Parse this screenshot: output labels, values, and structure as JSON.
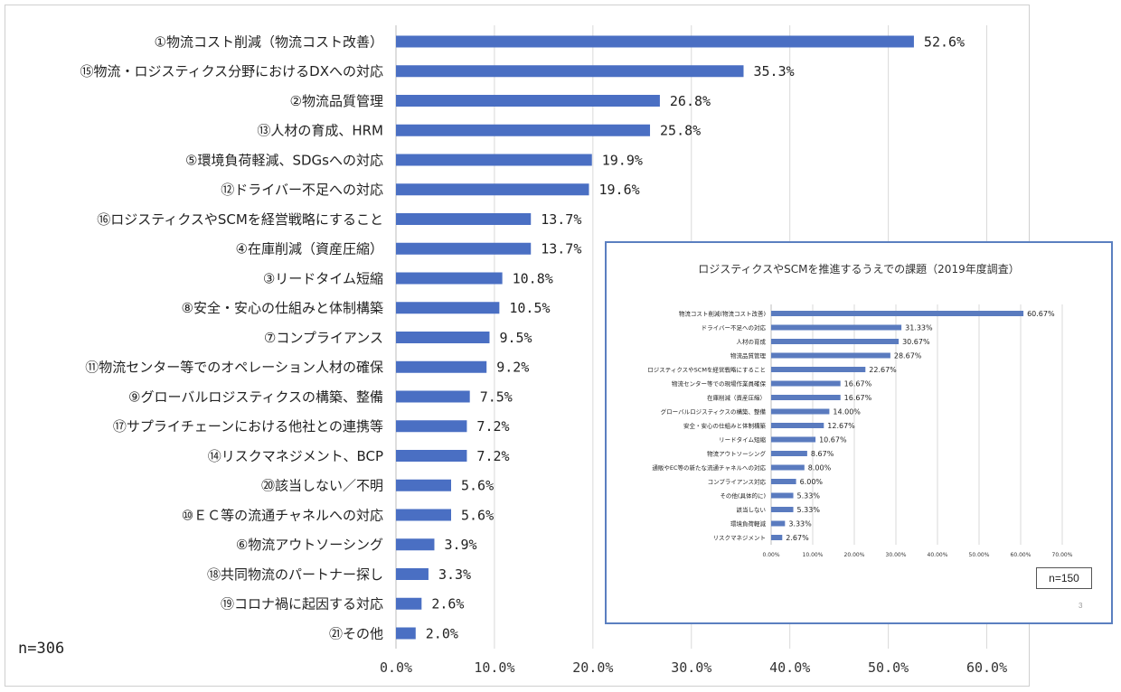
{
  "chart_data": [
    {
      "type": "bar",
      "orientation": "horizontal",
      "title": "",
      "note": "n=306",
      "categories": [
        "①物流コスト削減（物流コスト改善）",
        "⑮物流・ロジスティクス分野におけるDXへの対応",
        "②物流品質管理",
        "⑬人材の育成、HRM",
        "⑤環境負荷軽減、SDGsへの対応",
        "⑫ドライバー不足への対応",
        "⑯ロジスティクスやSCMを経営戦略にすること",
        "④在庫削減（資産圧縮）",
        "③リードタイム短縮",
        "⑧安全・安心の仕組みと体制構築",
        "⑦コンプライアンス",
        "⑪物流センター等でのオペレーション人材の確保",
        "⑨グローバルロジスティクスの構築、整備",
        "⑰サプライチェーンにおける他社との連携等",
        "⑭リスクマネジメント、BCP",
        "⑳該当しない／不明",
        "⑩ＥＣ等の流通チャネルへの対応",
        "⑥物流アウトソーシング",
        "⑱共同物流のパートナー探し",
        "⑲コロナ禍に起因する対応",
        "㉑その他"
      ],
      "values": [
        52.6,
        35.3,
        26.8,
        25.8,
        19.9,
        19.6,
        13.7,
        13.7,
        10.8,
        10.5,
        9.5,
        9.2,
        7.5,
        7.2,
        7.2,
        5.6,
        5.6,
        3.9,
        3.3,
        2.6,
        2.0
      ],
      "value_labels": [
        "52.6%",
        "35.3%",
        "26.8%",
        "25.8%",
        "19.9%",
        "19.6%",
        "13.7%",
        "13.7%",
        "10.8%",
        "10.5%",
        "9.5%",
        "9.2%",
        "7.5%",
        "7.2%",
        "7.2%",
        "5.6%",
        "5.6%",
        "3.9%",
        "3.3%",
        "2.6%",
        "2.0%"
      ],
      "xlim": [
        0,
        65
      ],
      "x_ticks": [
        0,
        10,
        20,
        30,
        40,
        50,
        60
      ],
      "x_tick_labels": [
        "0.0%",
        "10.0%",
        "20.0%",
        "30.0%",
        "40.0%",
        "50.0%",
        "60.0%"
      ],
      "xlabel": "",
      "ylabel": "",
      "grid": "vertical",
      "bar_color": "#4a6fc3"
    },
    {
      "type": "bar",
      "orientation": "horizontal",
      "title": "ロジスティクスやSCMを推進するうえでの課題（2019年度調査）",
      "note": "n=150",
      "page_number": "3",
      "categories": [
        "物流コスト削減(物流コスト改善)",
        "ドライバー不足への対応",
        "人材の育成",
        "物流品質管理",
        "ロジスティクスやSCMを経営戦略にすること",
        "物流センター等での現場作業員確保",
        "在庫削減（資産圧縮）",
        "グローバルロジスティクスの構築、整備",
        "安全・安心の仕組みと体制構築",
        "リードタイム短縮",
        "物流アウトソーシング",
        "通販やEC等の新たな流通チャネルへの対応",
        "コンプライアンス対応",
        "その他(具体的に)",
        "該当しない",
        "環境負荷軽減",
        "リスクマネジメント"
      ],
      "values": [
        60.67,
        31.33,
        30.67,
        28.67,
        22.67,
        16.67,
        16.67,
        14.0,
        12.67,
        10.67,
        8.67,
        8.0,
        6.0,
        5.33,
        5.33,
        3.33,
        2.67
      ],
      "value_labels": [
        "60.67%",
        "31.33%",
        "30.67%",
        "28.67%",
        "22.67%",
        "16.67%",
        "16.67%",
        "14.00%",
        "12.67%",
        "10.67%",
        "8.67%",
        "8.00%",
        "6.00%",
        "5.33%",
        "5.33%",
        "3.33%",
        "2.67%"
      ],
      "xlim": [
        0,
        70
      ],
      "x_ticks": [
        0,
        10,
        20,
        30,
        40,
        50,
        60,
        70
      ],
      "x_tick_labels": [
        "0.00%",
        "10.00%",
        "20.00%",
        "30.00%",
        "40.00%",
        "50.00%",
        "60.00%",
        "70.00%"
      ],
      "xlabel": "",
      "ylabel": "",
      "grid": "vertical",
      "bar_color": "#5a7bbf"
    }
  ]
}
